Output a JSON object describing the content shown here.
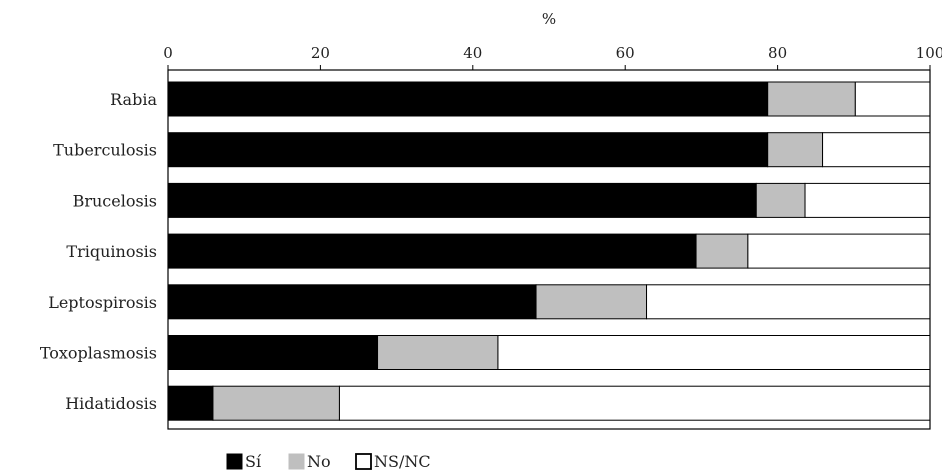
{
  "chart_data": {
    "type": "bar",
    "orientation": "horizontal",
    "stacked": true,
    "xlabel": "%",
    "xlim": [
      0,
      100
    ],
    "xticks": [
      "0",
      "20",
      "40",
      "60",
      "80",
      "100"
    ],
    "xaxis_position": "top",
    "grid": false,
    "legend_position": "bottom",
    "categories": [
      "Rabia",
      "Tuberculosis",
      "Brucelosis",
      "Triquinosis",
      "Leptospirosis",
      "Toxoplasmosis",
      "Hidatidosis"
    ],
    "series": [
      {
        "name": "Sí",
        "color": "#000000",
        "values": [
          78.7,
          78.7,
          77.2,
          69.3,
          48.3,
          27.5,
          5.9
        ]
      },
      {
        "name": "No",
        "color": "#bfbfbf",
        "values": [
          11.5,
          7.2,
          6.4,
          6.8,
          14.5,
          15.8,
          16.6
        ]
      },
      {
        "name": "NS/NC",
        "color": "#ffffff",
        "values": [
          9.8,
          14.1,
          16.4,
          23.9,
          37.2,
          56.7,
          77.5
        ]
      }
    ]
  }
}
